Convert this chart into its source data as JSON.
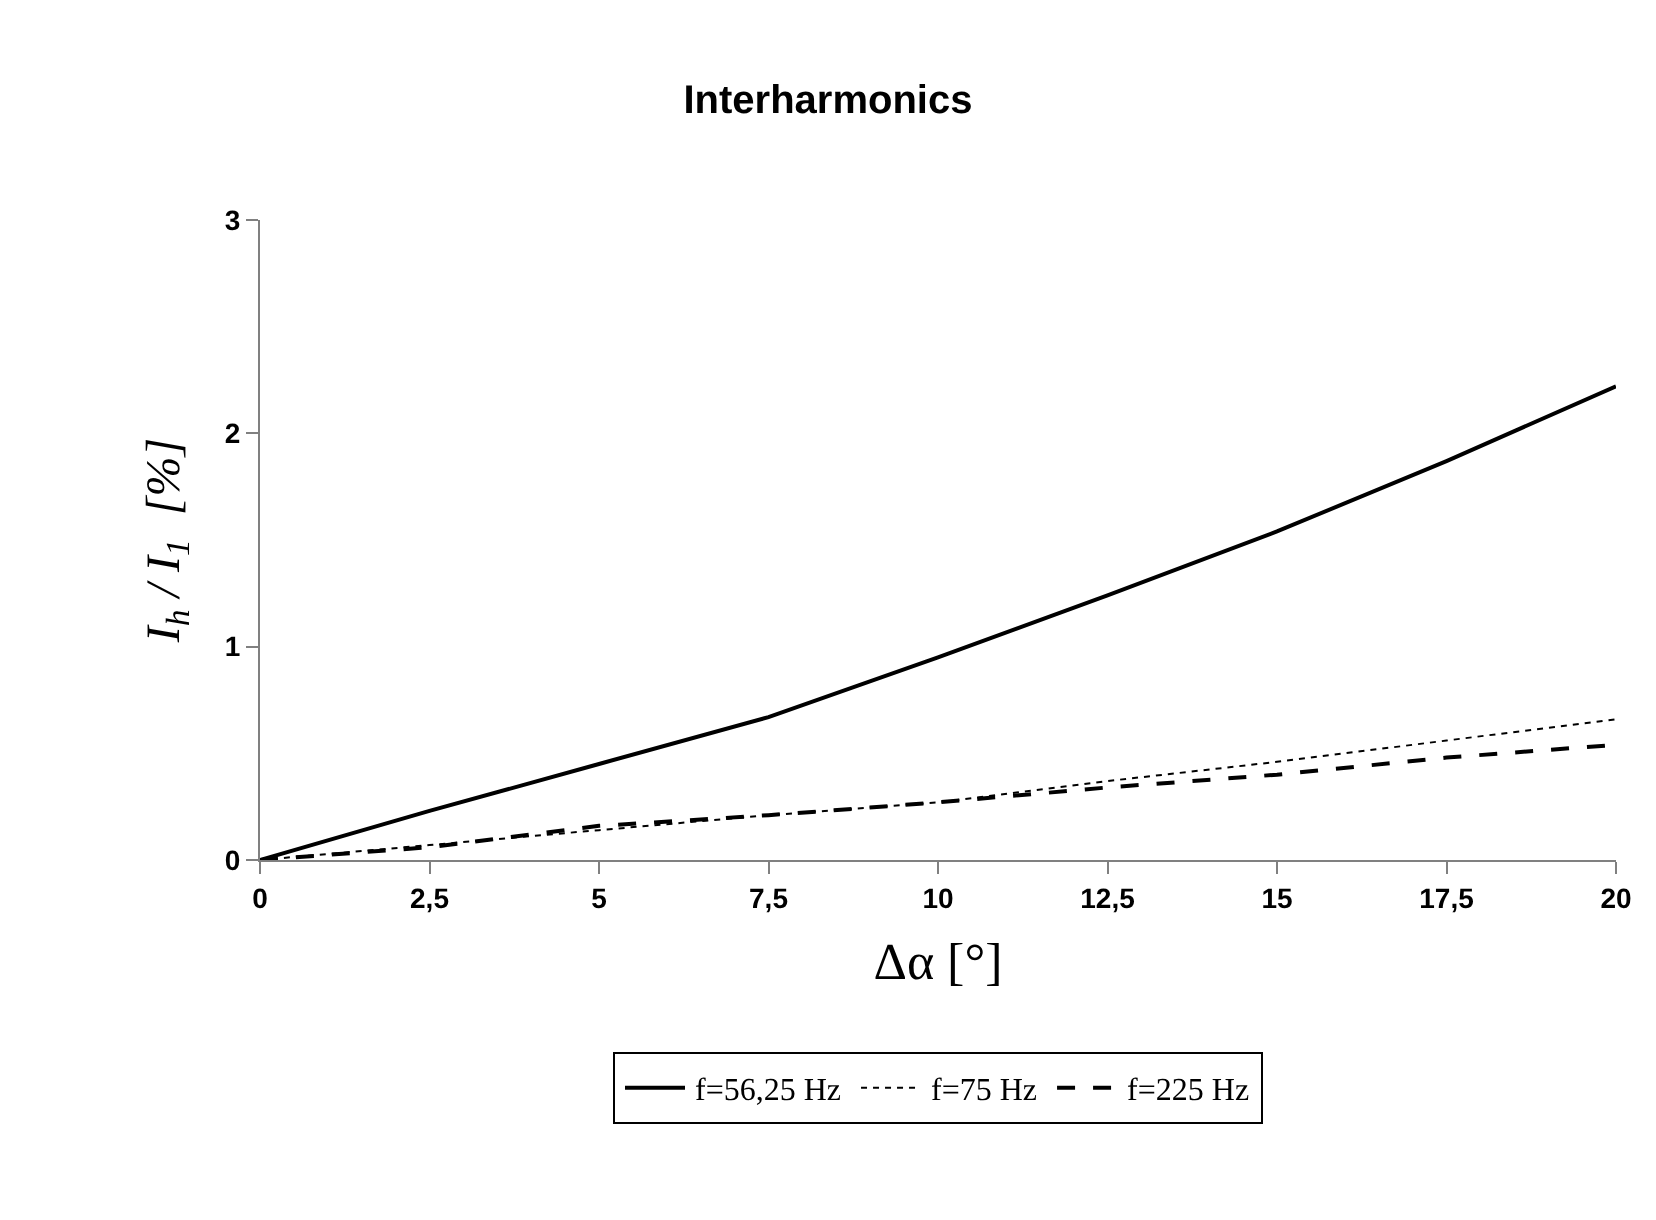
{
  "chart_data": {
    "type": "line",
    "title": "Interharmonics",
    "xlabel": "Δα [°]",
    "ylabel": "I$_{h}$ / I$_{1}$  [%]",
    "x": [
      0,
      2.5,
      5,
      7.5,
      10,
      12.5,
      15,
      17.5,
      20
    ],
    "series": [
      {
        "name": "f=56,25 Hz",
        "color": "#000000",
        "line_style": "solid",
        "values": [
          0,
          0.23,
          0.45,
          0.67,
          0.95,
          1.24,
          1.54,
          1.87,
          2.22
        ]
      },
      {
        "name": "f=75 Hz",
        "color": "#000000",
        "line_style": "dotted",
        "values": [
          0,
          0.07,
          0.14,
          0.21,
          0.27,
          0.37,
          0.46,
          0.56,
          0.66
        ]
      },
      {
        "name": "f=225 Hz",
        "color": "#000000",
        "line_style": "dashed",
        "values": [
          0,
          0.06,
          0.16,
          0.21,
          0.27,
          0.34,
          0.4,
          0.48,
          0.54
        ]
      }
    ],
    "xlim": [
      0,
      20
    ],
    "xticks": [
      0,
      {
        "value": 2.5,
        "label": "2,5"
      },
      5,
      {
        "value": 7.5,
        "label": "7,5"
      },
      10,
      {
        "value": 12.5,
        "label": "12,5"
      },
      15,
      {
        "value": 17.5,
        "label": "17,5"
      },
      20
    ],
    "ylim": [
      0,
      3
    ],
    "yticks": [
      0,
      1,
      2,
      3
    ],
    "legend": "bottom",
    "marker": "none"
  }
}
